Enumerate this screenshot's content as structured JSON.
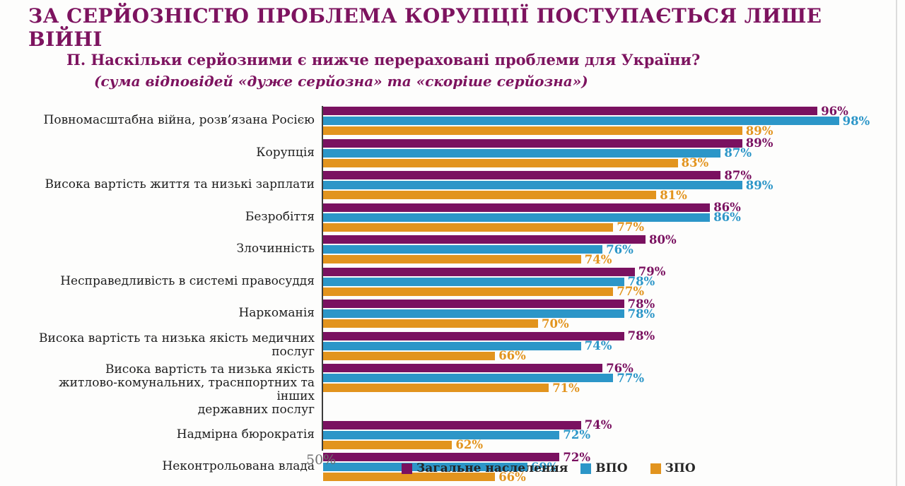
{
  "header": {
    "title": "ЗА СЕРЙОЗНІСТЮ ПРОБЛЕМА КОРУПЦІЇ ПОСТУПАЄТЬСЯ ЛИШЕ ВІЙНІ",
    "question": "П. Наскільки серйозними є нижче перераховані проблеми для України?",
    "question_note": "(сума відповідей «дуже серйозна» та «скоріше серйозна»)"
  },
  "colors": {
    "title_accent": "#7d135f",
    "series_general": "#7a1160",
    "series_vpo": "#2c96c8",
    "series_zpo": "#e2941e",
    "axis_line": "#3c3c3c",
    "axis_label_gray": "#6e6e6e"
  },
  "chart_data": {
    "type": "bar",
    "orientation": "horizontal",
    "title": "",
    "xlabel": "",
    "ylabel": "",
    "xlim": [
      50,
      100
    ],
    "axis_start_label": "50%",
    "grid": false,
    "legend_position": "bottom",
    "value_suffix": "%",
    "categories": [
      "Повномасштабна війна, розв’язана Росією",
      "Корупція",
      "Висока вартість життя та низькі зарплати",
      "Безробіття",
      "Злочинність",
      "Несправедливість в системі правосуддя",
      "Наркоманія",
      "Висока вартість та низька якість медичних послуг",
      "Висока вартість та низька якість\nжитлово-комунальних, траснпортних та інших\nдержавних послуг",
      "Надмірна бюрократія",
      "Неконтрольована влада"
    ],
    "series": [
      {
        "name": "Загальне наслелення",
        "color": "#7a1160",
        "values": [
          96,
          89,
          87,
          86,
          80,
          79,
          78,
          78,
          76,
          74,
          72
        ]
      },
      {
        "name": "ВПО",
        "color": "#2c96c8",
        "values": [
          98,
          87,
          89,
          86,
          76,
          78,
          78,
          74,
          77,
          72,
          69
        ]
      },
      {
        "name": "ЗПО",
        "color": "#e2941e",
        "values": [
          89,
          83,
          81,
          77,
          74,
          77,
          70,
          66,
          71,
          62,
          66
        ]
      }
    ]
  }
}
